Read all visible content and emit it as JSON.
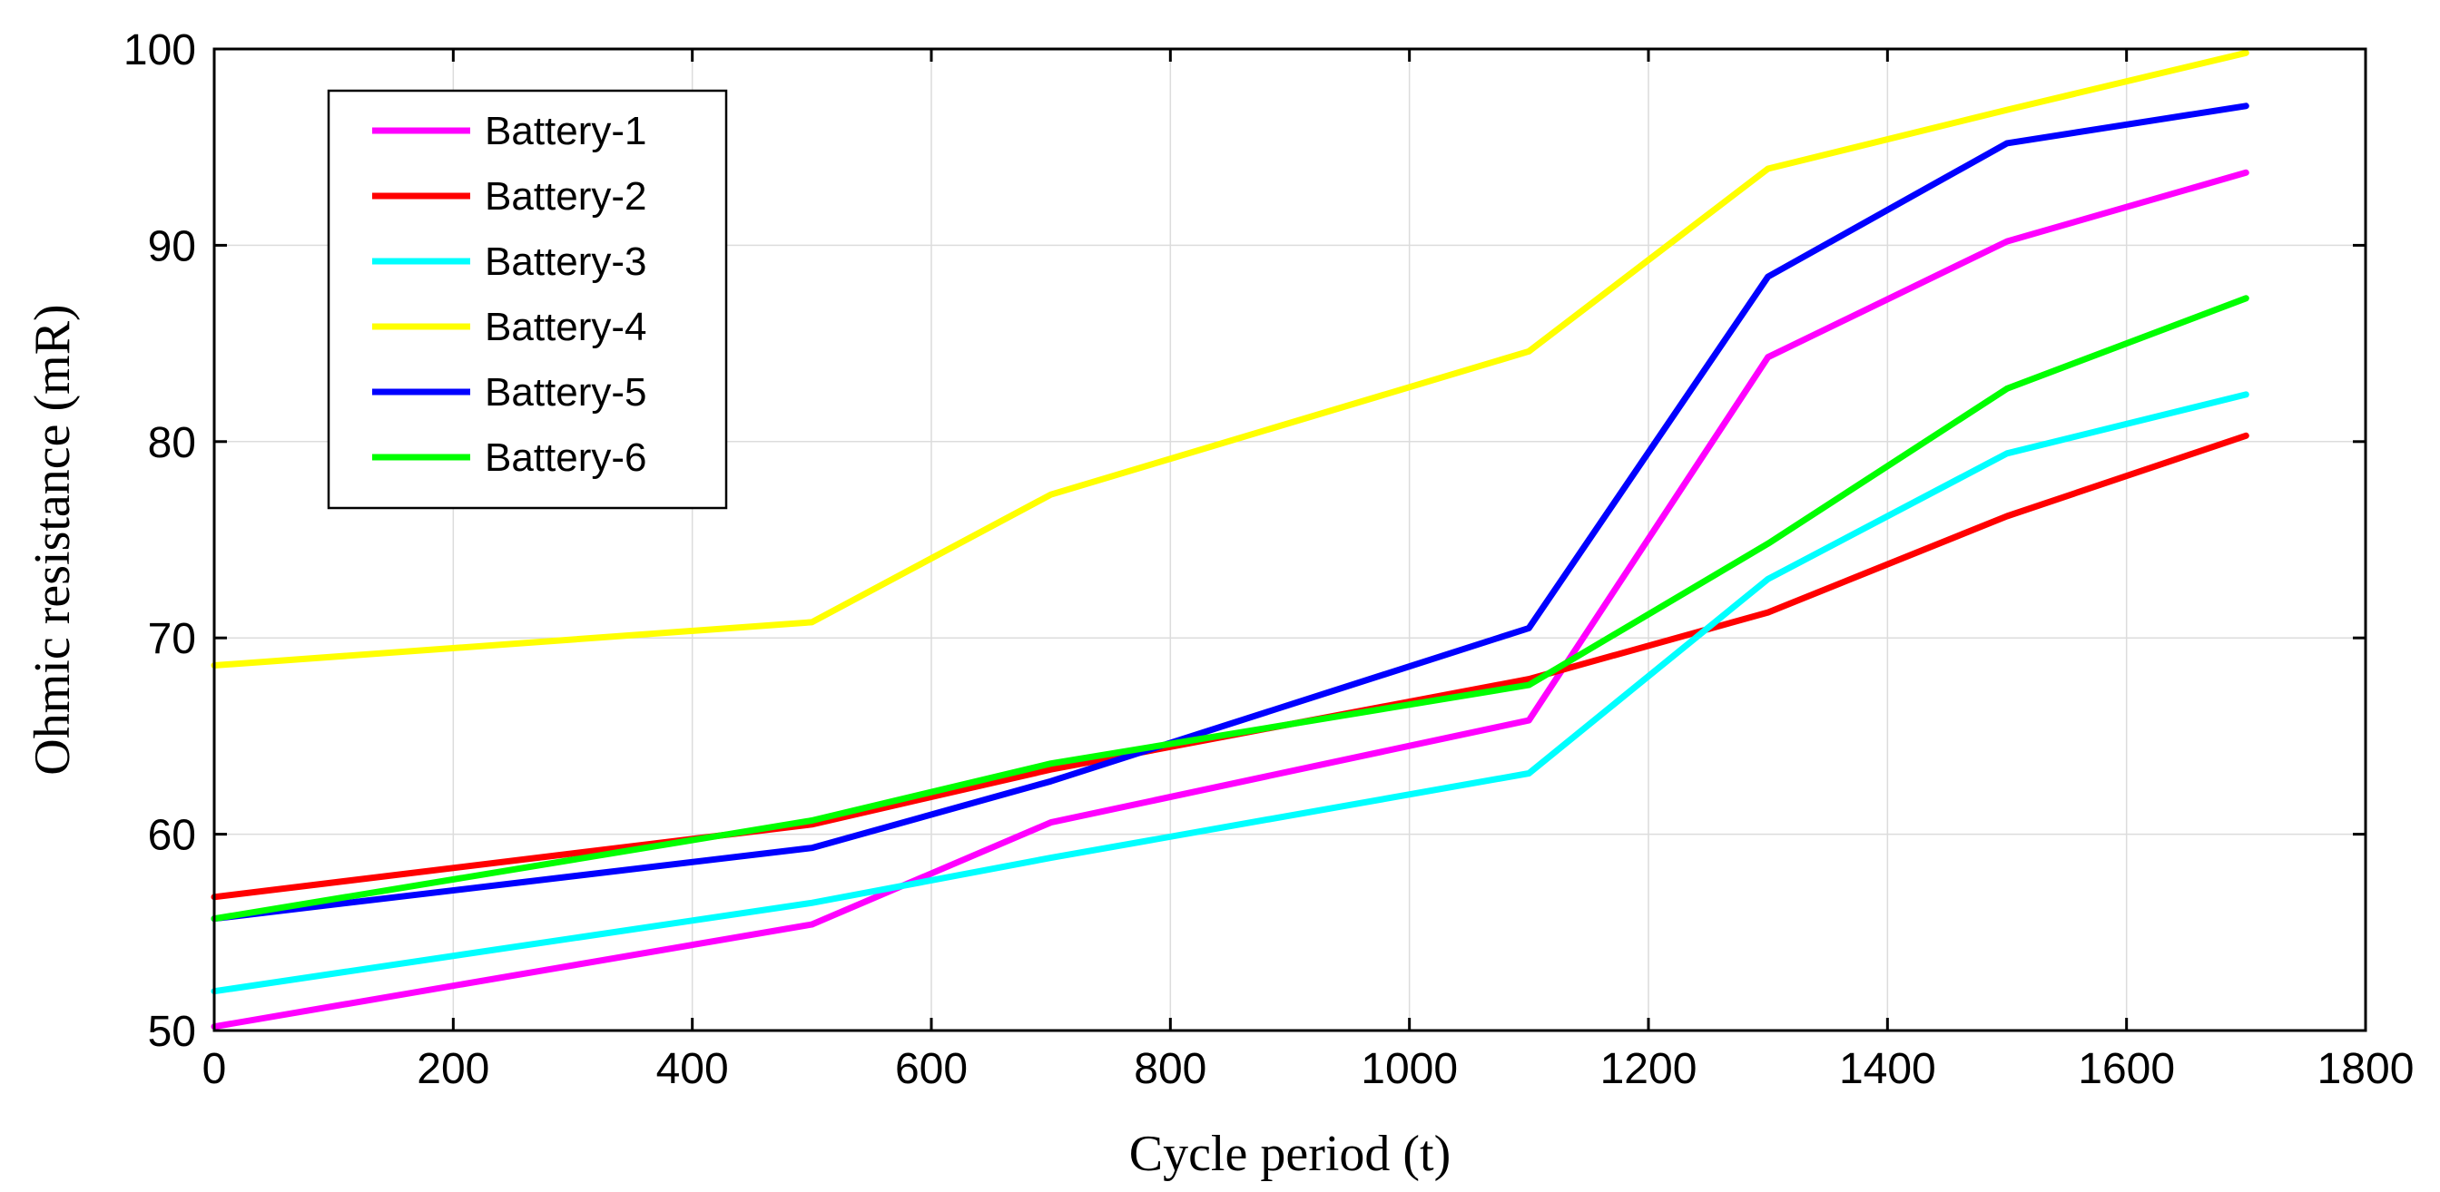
{
  "chart_data": {
    "type": "line",
    "xlabel": "Cycle period (t)",
    "ylabel": "Ohmic resistance (mR)",
    "xlim": [
      0,
      1800
    ],
    "ylim": [
      50,
      100
    ],
    "xticks": [
      0,
      200,
      400,
      600,
      800,
      1000,
      1200,
      1400,
      1600,
      1800
    ],
    "yticks": [
      50,
      60,
      70,
      80,
      90,
      100
    ],
    "grid": true,
    "legend_position": "top-left",
    "x": [
      0,
      500,
      700,
      1100,
      1300,
      1500,
      1700
    ],
    "series": [
      {
        "name": "Battery-1",
        "color": "#ff00ff",
        "values": [
          50.2,
          55.4,
          60.6,
          65.8,
          84.3,
          90.2,
          93.7
        ]
      },
      {
        "name": "Battery-2",
        "color": "#ff0000",
        "values": [
          56.8,
          60.5,
          63.3,
          67.9,
          71.3,
          76.2,
          80.3
        ]
      },
      {
        "name": "Battery-3",
        "color": "#00ffff",
        "values": [
          52.0,
          56.5,
          58.8,
          63.1,
          73.0,
          79.4,
          82.4
        ]
      },
      {
        "name": "Battery-4",
        "color": "#ffff00",
        "values": [
          68.6,
          70.8,
          77.3,
          84.6,
          93.9,
          96.9,
          99.8
        ]
      },
      {
        "name": "Battery-5",
        "color": "#0000ff",
        "values": [
          55.7,
          59.3,
          62.7,
          70.5,
          88.4,
          95.2,
          97.1
        ]
      },
      {
        "name": "Battery-6",
        "color": "#00ff00",
        "values": [
          55.7,
          60.7,
          63.6,
          67.6,
          74.8,
          82.7,
          87.3
        ]
      }
    ]
  }
}
